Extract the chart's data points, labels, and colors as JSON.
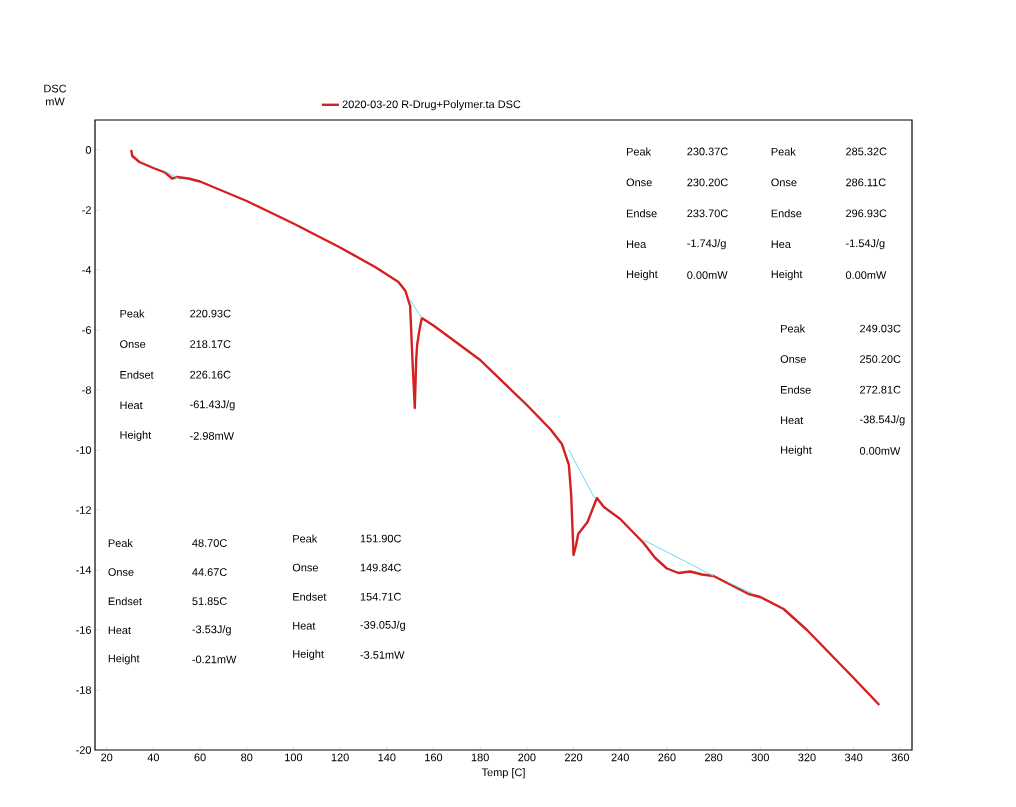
{
  "chart_data": {
    "type": "line",
    "xlabel": "Temp [C]",
    "ylabel": "DSC mW",
    "xlim": [
      15,
      365
    ],
    "ylim": [
      -20,
      1
    ],
    "xticks": [
      20,
      40,
      60,
      80,
      100,
      120,
      140,
      160,
      180,
      200,
      220,
      240,
      260,
      280,
      300,
      320,
      340,
      360
    ],
    "yticks": [
      0,
      -2,
      -4,
      -6,
      -8,
      -10,
      -12,
      -14,
      -16,
      -18,
      -20
    ],
    "legend": "top",
    "grid": false,
    "marker": "none",
    "line_style": "solid",
    "series": [
      {
        "name": "2020-03-20 R-Drug+Polymer.ta  DSC",
        "color": "#d42020",
        "x": [
          30.5,
          31,
          34,
          40,
          45,
          48,
          50,
          55,
          60,
          80,
          100,
          120,
          135,
          145,
          148,
          150,
          151,
          152,
          152.6,
          153,
          154,
          155,
          160,
          180,
          200,
          210,
          215,
          218,
          219,
          220,
          221,
          222,
          226,
          229,
          230,
          233,
          240,
          245,
          250,
          255,
          260,
          265,
          270,
          275,
          280,
          285,
          290,
          295,
          300,
          310,
          320,
          330,
          340,
          351
        ],
        "values": [
          0,
          -0.2,
          -0.4,
          -0.6,
          -0.75,
          -0.95,
          -0.9,
          -0.95,
          -1.05,
          -1.7,
          -2.45,
          -3.25,
          -3.9,
          -4.4,
          -4.7,
          -5.2,
          -7.0,
          -8.6,
          -7.0,
          -6.5,
          -6.0,
          -5.6,
          -5.85,
          -7.0,
          -8.5,
          -9.3,
          -9.8,
          -10.5,
          -11.5,
          -13.5,
          -13.2,
          -12.8,
          -12.4,
          -11.8,
          -11.6,
          -11.9,
          -12.3,
          -12.7,
          -13.1,
          -13.6,
          -13.95,
          -14.1,
          -14.05,
          -14.15,
          -14.2,
          -14.4,
          -14.6,
          -14.8,
          -14.9,
          -15.3,
          -16.0,
          -16.8,
          -17.6,
          -18.5
        ]
      },
      {
        "color": "#66dde8",
        "x": [
          44.7,
          51.9,
          52,
          150,
          155,
          156,
          218,
          229,
          230,
          250,
          280,
          281,
          286,
          297
        ],
        "values": [
          -0.7,
          -1.0,
          null,
          -5.0,
          -5.6,
          null,
          -10.0,
          -11.6,
          null,
          -13.0,
          -14.2,
          null,
          -14.4,
          -14.8
        ]
      }
    ],
    "annotations": [
      "Peak",
      "230.37C",
      "Onse",
      "230.20C",
      "Endse",
      "233.70C",
      "Hea",
      "-1.74J/g",
      "Height",
      "0.00mW",
      "Peak",
      "285.32C",
      "Onse",
      "286.11C",
      "Endse",
      "296.93C",
      "Hea",
      "-1.54J/g",
      "Height",
      "0.00mW",
      "Peak",
      "249.03C",
      "Onse",
      "250.20C",
      "Endse",
      "272.81C",
      "Heat",
      "-38.54J/g",
      "Height",
      "0.00mW",
      "Peak",
      "220.93C",
      "Onse",
      "218.17C",
      "Endset",
      "226.16C",
      "Heat",
      "-61.43J/g",
      "Height",
      "-2.98mW",
      "Peak",
      "48.70C",
      "Onse",
      "44.67C",
      "Endset",
      "51.85C",
      "Heat",
      "-3.53J/g",
      "Height",
      "-0.21mW",
      "Peak",
      "151.90C",
      "Onse",
      "149.84C",
      "Endset",
      "154.71C",
      "Heat",
      "-39.05J/g",
      "Height",
      "-3.51mW"
    ]
  }
}
